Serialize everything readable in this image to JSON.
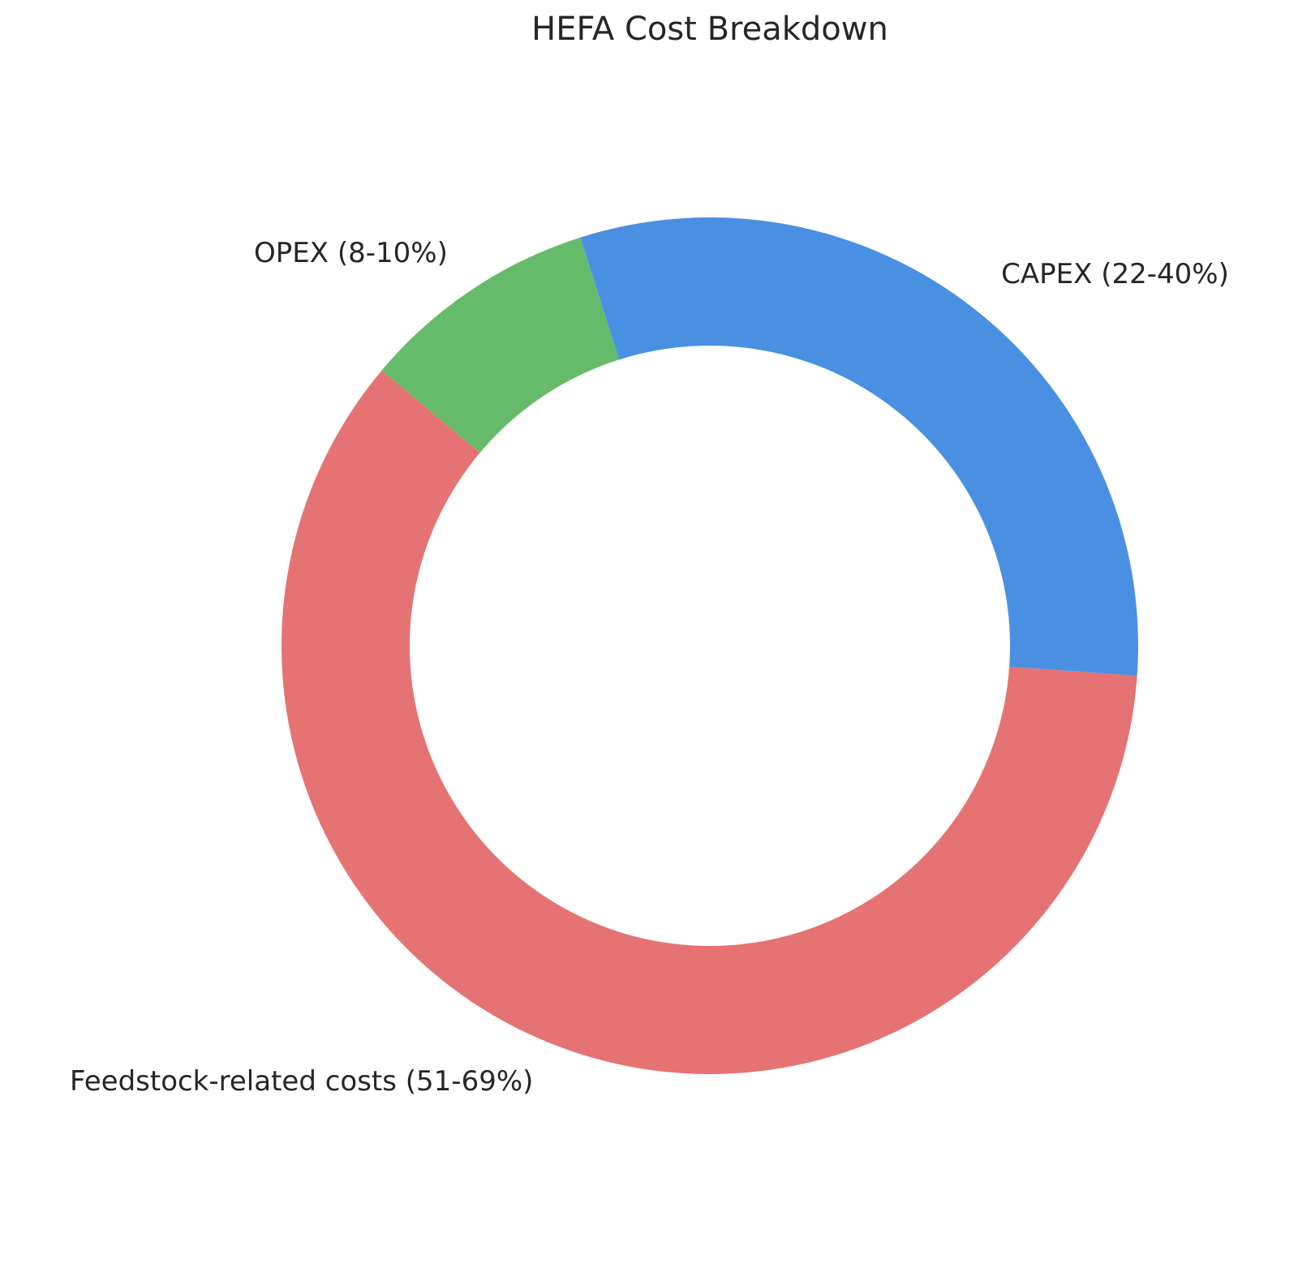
{
  "chart_data": {
    "type": "donut",
    "title": "HEFA Cost Breakdown",
    "categories": [
      "Feedstock-related costs (51-69%)",
      "CAPEX (22-40%)",
      "OPEX (8-10%)"
    ],
    "values": [
      60,
      31,
      9
    ],
    "colors": [
      "#e57373",
      "#4a90e2",
      "#66bb6a"
    ]
  }
}
